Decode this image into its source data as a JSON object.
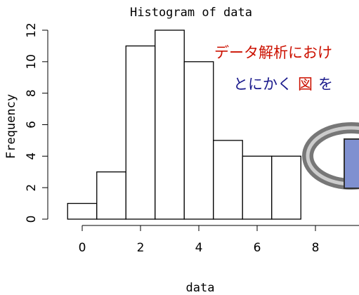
{
  "chart_data": {
    "type": "histogram",
    "title": "Histogram of data",
    "xlabel": "data",
    "ylabel": "Frequency",
    "bins": [
      -0.5,
      0.5,
      1.5,
      2.5,
      3.5,
      4.5,
      5.5,
      6.5,
      7.5
    ],
    "values": [
      1,
      3,
      11,
      12,
      10,
      5,
      4,
      4
    ],
    "color": "#ffffff",
    "xlim": [
      -1,
      9.5
    ],
    "xticks": [
      0,
      2,
      4,
      6,
      8
    ],
    "ylim": [
      0,
      12
    ],
    "yticks": [
      0,
      2,
      4,
      6,
      8,
      10,
      12
    ],
    "annotations": [
      [
        {
          "text": "データ解析におけ",
          "color": "#cc1100"
        }
      ],
      [
        {
          "text": "とにかく",
          "color": "#1a1a8c"
        },
        {
          "text": "図",
          "color": "#cc1100"
        },
        {
          "text": "を",
          "color": "#1a1a8c"
        }
      ]
    ]
  }
}
